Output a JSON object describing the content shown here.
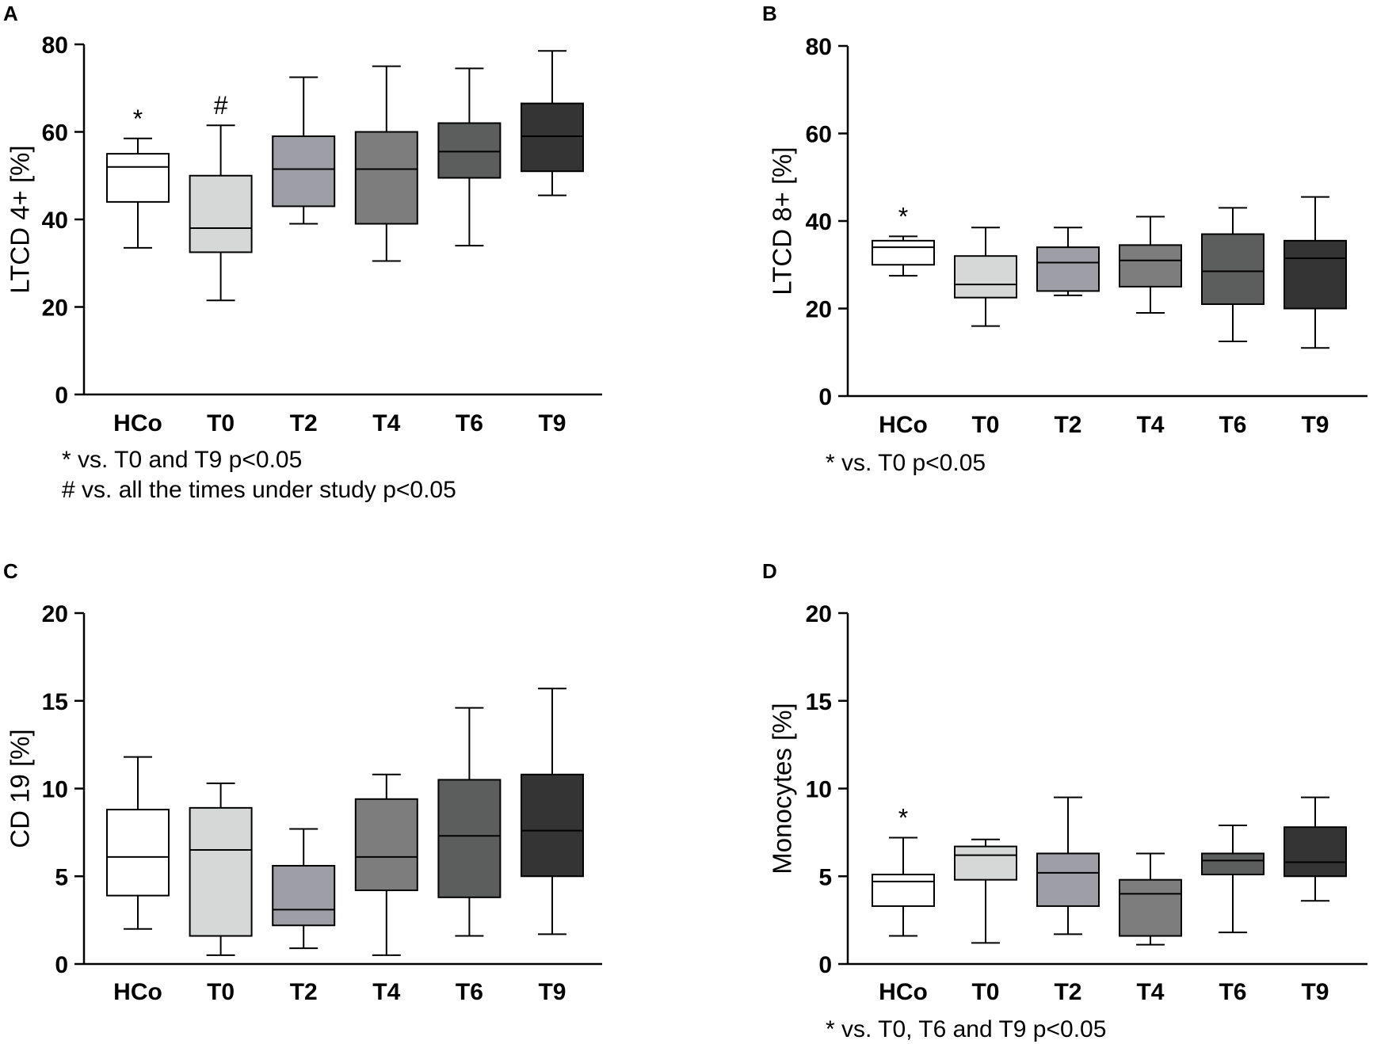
{
  "colors": {
    "axis": "#000000",
    "box_fills": [
      "#ffffff",
      "#d6d7d7",
      "#9e9ea6",
      "#7d7d7d",
      "#5c5e5d",
      "#343434"
    ]
  },
  "chart_data": [
    {
      "panel": "A",
      "type": "boxplot",
      "ylabel": "LTCD 4+ [%]",
      "ylim": [
        0,
        80
      ],
      "yticks": [
        0,
        20,
        40,
        60,
        80
      ],
      "categories": [
        "HCo",
        "T0",
        "T2",
        "T4",
        "T6",
        "T9"
      ],
      "boxes": [
        {
          "min": 33.5,
          "q1": 44,
          "median": 52,
          "q3": 55,
          "max": 58.5,
          "marker": "*"
        },
        {
          "min": 21.5,
          "q1": 32.5,
          "median": 38,
          "q3": 50,
          "max": 61.5,
          "marker": "#"
        },
        {
          "min": 39,
          "q1": 43,
          "median": 51.5,
          "q3": 59,
          "max": 72.5,
          "marker": ""
        },
        {
          "min": 30.5,
          "q1": 39,
          "median": 51.5,
          "q3": 60,
          "max": 75,
          "marker": ""
        },
        {
          "min": 34,
          "q1": 49.5,
          "median": 55.5,
          "q3": 62,
          "max": 74.5,
          "marker": ""
        },
        {
          "min": 45.5,
          "q1": 51,
          "median": 59,
          "q3": 66.5,
          "max": 78.5,
          "marker": ""
        }
      ],
      "notes": [
        "* vs. T0 and T9 p<0.05",
        "# vs. all the times under study p<0.05"
      ]
    },
    {
      "panel": "B",
      "type": "boxplot",
      "ylabel": "LTCD 8+ [%]",
      "ylim": [
        0,
        80
      ],
      "yticks": [
        0,
        20,
        40,
        60,
        80
      ],
      "categories": [
        "HCo",
        "T0",
        "T2",
        "T4",
        "T6",
        "T9"
      ],
      "boxes": [
        {
          "min": 27.5,
          "q1": 30,
          "median": 34,
          "q3": 35.5,
          "max": 36.5,
          "marker": "*"
        },
        {
          "min": 16,
          "q1": 22.5,
          "median": 25.5,
          "q3": 32,
          "max": 38.5,
          "marker": ""
        },
        {
          "min": 23,
          "q1": 24,
          "median": 30.5,
          "q3": 34,
          "max": 38.5,
          "marker": ""
        },
        {
          "min": 19,
          "q1": 25,
          "median": 31,
          "q3": 34.5,
          "max": 41,
          "marker": ""
        },
        {
          "min": 12.5,
          "q1": 21,
          "median": 28.5,
          "q3": 37,
          "max": 43,
          "marker": ""
        },
        {
          "min": 11,
          "q1": 20,
          "median": 31.5,
          "q3": 35.5,
          "max": 45.5,
          "marker": ""
        }
      ],
      "notes": [
        "* vs. T0 p<0.05"
      ]
    },
    {
      "panel": "C",
      "type": "boxplot",
      "ylabel": "CD 19 [%]",
      "ylim": [
        0,
        20
      ],
      "yticks": [
        0,
        5,
        10,
        15,
        20
      ],
      "categories": [
        "HCo",
        "T0",
        "T2",
        "T4",
        "T6",
        "T9"
      ],
      "boxes": [
        {
          "min": 2,
          "q1": 3.9,
          "median": 6.1,
          "q3": 8.8,
          "max": 11.8,
          "marker": ""
        },
        {
          "min": 0.5,
          "q1": 1.6,
          "median": 6.5,
          "q3": 8.9,
          "max": 10.3,
          "marker": ""
        },
        {
          "min": 0.9,
          "q1": 2.2,
          "median": 3.1,
          "q3": 5.6,
          "max": 7.7,
          "marker": ""
        },
        {
          "min": 0.5,
          "q1": 4.2,
          "median": 6.1,
          "q3": 9.4,
          "max": 10.8,
          "marker": ""
        },
        {
          "min": 1.6,
          "q1": 3.8,
          "median": 7.3,
          "q3": 10.5,
          "max": 14.6,
          "marker": ""
        },
        {
          "min": 1.7,
          "q1": 5,
          "median": 7.6,
          "q3": 10.8,
          "max": 15.7,
          "marker": ""
        }
      ],
      "notes": []
    },
    {
      "panel": "D",
      "type": "boxplot",
      "ylabel": "Monocytes [%]",
      "ylim": [
        0,
        20
      ],
      "yticks": [
        0,
        5,
        10,
        15,
        20
      ],
      "categories": [
        "HCo",
        "T0",
        "T2",
        "T4",
        "T6",
        "T9"
      ],
      "boxes": [
        {
          "min": 1.6,
          "q1": 3.3,
          "median": 4.7,
          "q3": 5.1,
          "max": 7.2,
          "marker": "*"
        },
        {
          "min": 1.2,
          "q1": 4.8,
          "median": 6.2,
          "q3": 6.7,
          "max": 7.1,
          "marker": ""
        },
        {
          "min": 1.7,
          "q1": 3.3,
          "median": 5.2,
          "q3": 6.3,
          "max": 9.5,
          "marker": ""
        },
        {
          "min": 1.1,
          "q1": 1.6,
          "median": 4,
          "q3": 4.8,
          "max": 6.3,
          "marker": ""
        },
        {
          "min": 1.8,
          "q1": 5.1,
          "median": 5.9,
          "q3": 6.3,
          "max": 7.9,
          "marker": ""
        },
        {
          "min": 3.6,
          "q1": 5,
          "median": 5.8,
          "q3": 7.8,
          "max": 9.5,
          "marker": ""
        }
      ],
      "notes": [
        "* vs. T0, T6 and T9 p<0.05"
      ]
    }
  ]
}
